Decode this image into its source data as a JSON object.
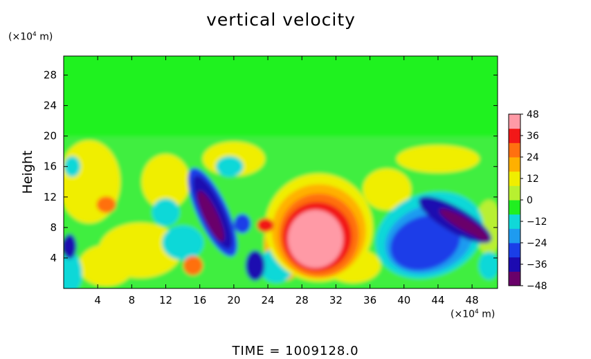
{
  "chart_data": {
    "type": "heatmap",
    "title": "vertical velocity",
    "xlabel": "",
    "ylabel": "Height",
    "x_unit": "(×10⁴ m)",
    "y_unit": "(×10⁴ m)",
    "x_ticks": [
      4,
      8,
      12,
      16,
      20,
      24,
      28,
      32,
      36,
      40,
      44,
      48
    ],
    "y_ticks": [
      4,
      8,
      12,
      16,
      20,
      24,
      28
    ],
    "xlim": [
      0,
      51
    ],
    "ylim": [
      0,
      30.5
    ],
    "colorbar": {
      "ticks": [
        48,
        36,
        24,
        12,
        0,
        -12,
        -24,
        -36,
        -48
      ],
      "range": [
        -48,
        48
      ],
      "colors": [
        "#6a006a",
        "#1c0ab0",
        "#1a3ee8",
        "#1e9bf0",
        "#10d8d8",
        "#20ef20",
        "#b8f030",
        "#f0ee00",
        "#ffb000",
        "#ff7010",
        "#f21818",
        "#ff9aa6"
      ]
    },
    "features": [
      {
        "kind": "updraft",
        "x": 29.5,
        "y": 6.5,
        "peak": 48
      },
      {
        "kind": "downdraft",
        "x": 17.5,
        "y": 9.5,
        "peak": -45
      },
      {
        "kind": "downdraft",
        "x": 46,
        "y": 9,
        "peak": -46
      },
      {
        "kind": "downdraft",
        "x": 41,
        "y": 6,
        "peak": -28
      },
      {
        "kind": "updraft",
        "x": 5,
        "y": 11,
        "peak": 30
      },
      {
        "kind": "updraft",
        "x": 23.5,
        "y": 8,
        "peak": 34
      }
    ]
  },
  "footer": {
    "time_label": "TIME  =  1009128.0"
  }
}
